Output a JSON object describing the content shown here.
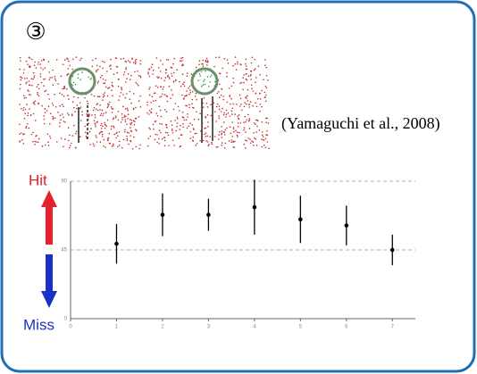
{
  "slide_number": "③",
  "citation": "(Yamaguchi et al., 2008)",
  "chart_data": {
    "type": "errorbar",
    "top_label": "Hit",
    "bottom_label": "Miss",
    "x": [
      1,
      2,
      3,
      4,
      5,
      6,
      7
    ],
    "values": [
      49,
      68,
      68,
      73,
      65,
      61,
      45
    ],
    "errors": [
      13,
      14,
      10.5,
      18,
      15.5,
      13,
      10
    ],
    "color": "#000000",
    "xlim": [
      0,
      7.5
    ],
    "xticks": [
      0,
      1,
      2,
      3,
      4,
      5,
      6,
      7
    ],
    "ylim": [
      0,
      90
    ],
    "yticks": [
      0,
      45,
      90
    ],
    "grid": true
  }
}
